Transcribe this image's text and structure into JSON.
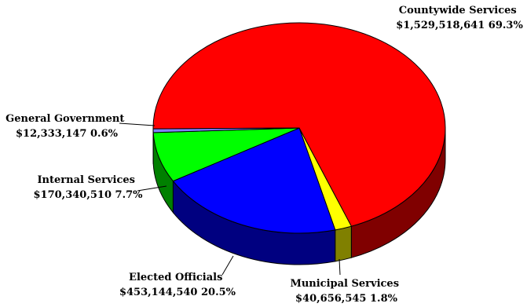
{
  "chart_data": {
    "type": "pie",
    "style": "3d",
    "title": "",
    "slices": [
      {
        "label": "Countywide Services",
        "amount": "$1,529,518,641",
        "percent": "69.3%",
        "value": 1529518641,
        "color": "#FF0000",
        "side_color": "#800000"
      },
      {
        "label": "Municipal Services",
        "amount": "$40,656,545",
        "percent": "1.8%",
        "value": 40656545,
        "color": "#FFFF00",
        "side_color": "#808000"
      },
      {
        "label": "Elected Officials",
        "amount": "$453,144,540",
        "percent": "20.5%",
        "value": 453144540,
        "color": "#0000FF",
        "side_color": "#000080"
      },
      {
        "label": "Internal Services",
        "amount": "$170,340,510",
        "percent": "7.7%",
        "value": 170340510,
        "color": "#00FF00",
        "side_color": "#008000"
      },
      {
        "label": "General Government",
        "amount": "$12,333,147",
        "percent": "0.6%",
        "value": 12333147,
        "color": "#8080FF",
        "side_color": "#404080"
      }
    ]
  }
}
